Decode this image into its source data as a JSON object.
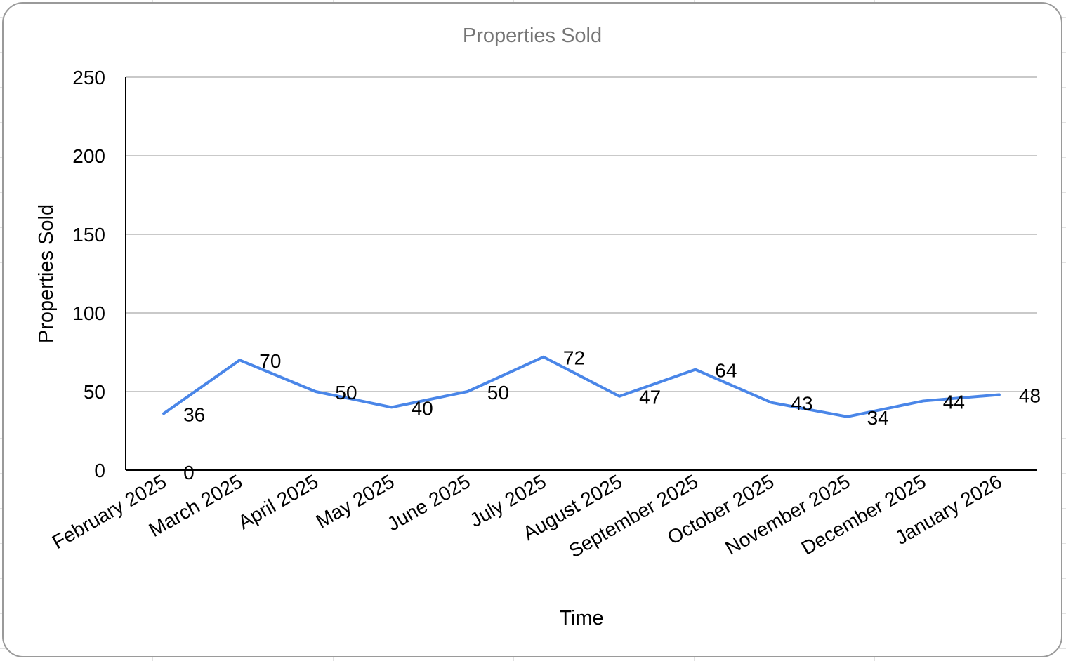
{
  "chart_data": {
    "type": "line",
    "title": "Properties Sold",
    "xlabel": "Time",
    "ylabel": "Properties Sold",
    "ylim": [
      0,
      250
    ],
    "yticks": [
      0,
      50,
      100,
      150,
      200,
      250
    ],
    "grid": true,
    "legend": "none",
    "categories": [
      "February 2025",
      "March 2025",
      "April 2025",
      "May 2025",
      "June 2025",
      "July 2025",
      "August 2025",
      "September 2025",
      "October 2025",
      "November 2025",
      "December 2025",
      "January 2026"
    ],
    "series": [
      {
        "name": "Properties Sold",
        "color": "#4a86e8",
        "values": [
          36,
          70,
          50,
          40,
          50,
          72,
          47,
          64,
          43,
          34,
          44,
          48
        ]
      }
    ],
    "extra_labels": [
      {
        "category_index": 0,
        "value": 0,
        "text": "0"
      }
    ]
  }
}
